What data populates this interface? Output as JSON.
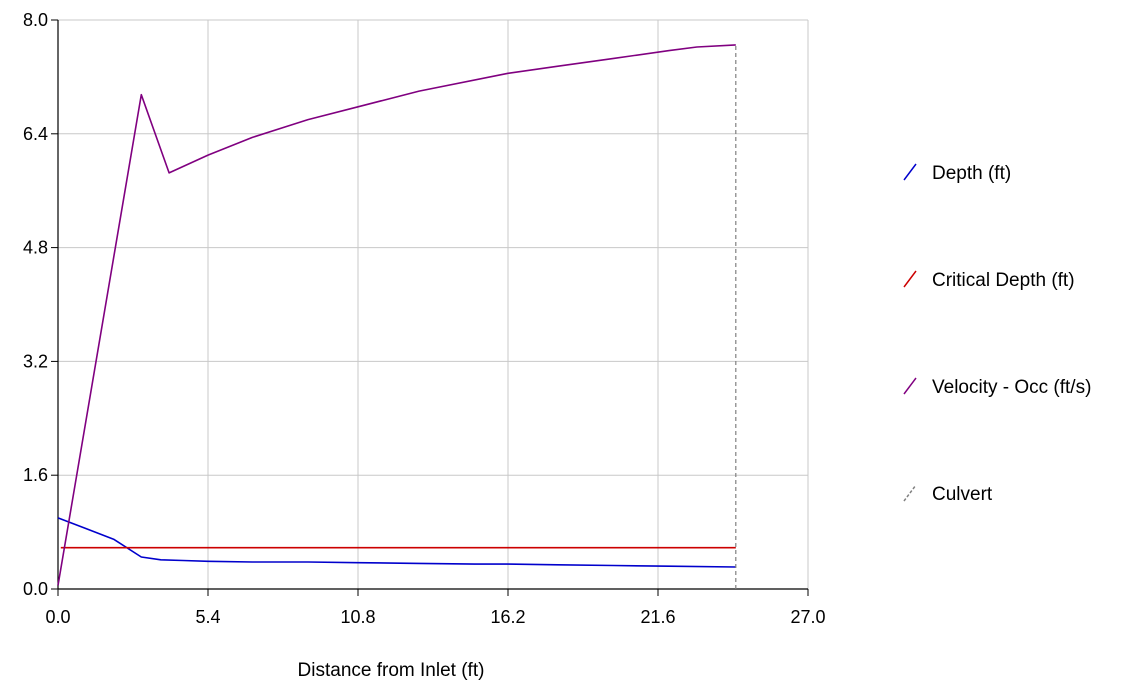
{
  "chart_data": {
    "type": "line",
    "title": "",
    "xlabel": "Distance from Inlet (ft)",
    "ylabel": "",
    "xlim": [
      0,
      27
    ],
    "ylim": [
      0,
      8
    ],
    "xticks": [
      "0.0",
      "5.4",
      "10.8",
      "16.2",
      "21.6",
      "27.0"
    ],
    "yticks": [
      "0.0",
      "1.6",
      "3.2",
      "4.8",
      "6.4",
      "8.0"
    ],
    "grid": true,
    "legend_position": "right",
    "series": [
      {
        "name": "Depth (ft)",
        "color": "#0000cc",
        "x": [
          0,
          1.0,
          2.0,
          3.0,
          3.7,
          4.5,
          5.4,
          7.0,
          9.0,
          10.8,
          13.0,
          15.0,
          16.2,
          18.0,
          20.0,
          22.0,
          24.4
        ],
        "y": [
          1.0,
          0.85,
          0.7,
          0.45,
          0.41,
          0.4,
          0.39,
          0.38,
          0.38,
          0.37,
          0.36,
          0.35,
          0.35,
          0.34,
          0.33,
          0.32,
          0.31
        ]
      },
      {
        "name": "Critical Depth (ft)",
        "color": "#cc0000",
        "x": [
          0.1,
          24.4
        ],
        "y": [
          0.58,
          0.58
        ]
      },
      {
        "name": "Velocity - Occ (ft/s)",
        "color": "#800080",
        "x": [
          0,
          3.0,
          4.0,
          5.4,
          7.0,
          9.0,
          10.8,
          13.0,
          16.2,
          18.0,
          20.0,
          22.0,
          23.0,
          24.4
        ],
        "y": [
          0.05,
          6.95,
          5.85,
          6.1,
          6.35,
          6.6,
          6.78,
          7.0,
          7.25,
          7.35,
          7.46,
          7.57,
          7.62,
          7.65
        ]
      },
      {
        "name": "Culvert",
        "color": "#808080",
        "x": [
          24.4,
          24.4
        ],
        "y": [
          0,
          7.65
        ]
      }
    ]
  }
}
